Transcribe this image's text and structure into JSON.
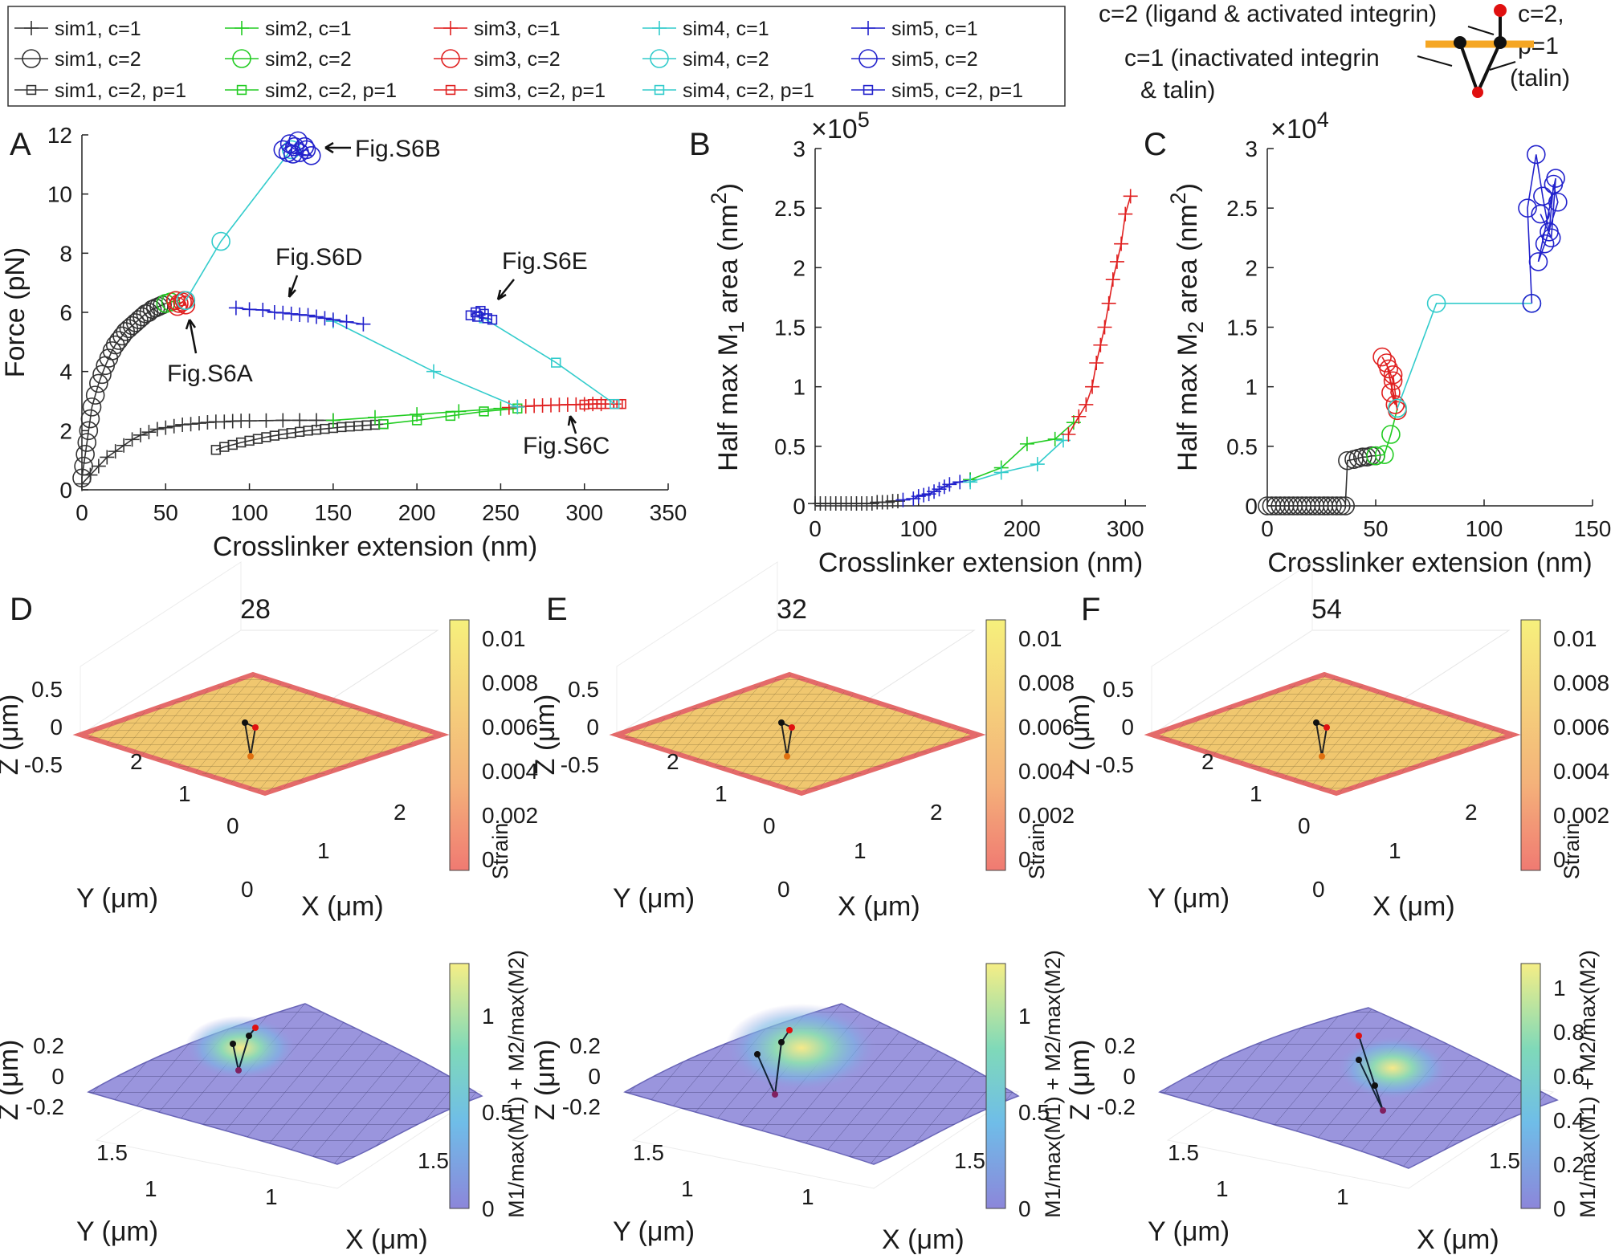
{
  "legend": {
    "entries": [
      {
        "label": "sim1, c=1",
        "color": "#333333",
        "marker": "plus"
      },
      {
        "label": "sim2, c=1",
        "color": "#22cc22",
        "marker": "plus"
      },
      {
        "label": "sim3, c=1",
        "color": "#e02020",
        "marker": "plus"
      },
      {
        "label": "sim4, c=1",
        "color": "#33cccc",
        "marker": "plus"
      },
      {
        "label": "sim5, c=1",
        "color": "#2222cc",
        "marker": "plus"
      },
      {
        "label": "sim1, c=2",
        "color": "#333333",
        "marker": "circle"
      },
      {
        "label": "sim2, c=2",
        "color": "#22cc22",
        "marker": "circle"
      },
      {
        "label": "sim3, c=2",
        "color": "#e02020",
        "marker": "circle"
      },
      {
        "label": "sim4, c=2",
        "color": "#33cccc",
        "marker": "circle"
      },
      {
        "label": "sim5, c=2",
        "color": "#2222cc",
        "marker": "circle"
      },
      {
        "label": "sim1, c=2, p=1",
        "color": "#333333",
        "marker": "square"
      },
      {
        "label": "sim2, c=2, p=1",
        "color": "#22cc22",
        "marker": "square"
      },
      {
        "label": "sim3, c=2, p=1",
        "color": "#e02020",
        "marker": "square"
      },
      {
        "label": "sim4, c=2, p=1",
        "color": "#33cccc",
        "marker": "square"
      },
      {
        "label": "sim5, c=2, p=1",
        "color": "#2222cc",
        "marker": "square"
      }
    ]
  },
  "schematic": {
    "top_label": "c=2 (ligand & activated integrin)",
    "right_label_1": "c=2,",
    "right_label_2": "p=1",
    "right_label_3": "(talin)",
    "left_label_1": "c=1 (inactivated integrin",
    "left_label_2": "& talin)",
    "bar_color": "#f5a623",
    "node_red": "#e01010",
    "node_black": "#111111"
  },
  "panels": {
    "A": {
      "letter": "A"
    },
    "B": {
      "letter": "B",
      "exponent": "×10",
      "exponent_power": "5"
    },
    "C": {
      "letter": "C",
      "exponent": "×10",
      "exponent_power": "4"
    },
    "D": {
      "letter": "D",
      "title": "28"
    },
    "E": {
      "letter": "E",
      "title": "32"
    },
    "F": {
      "letter": "F",
      "title": "54"
    }
  },
  "annotations": {
    "figS6A": "Fig.S6A",
    "figS6B": "Fig.S6B",
    "figS6C": "Fig.S6C",
    "figS6D": "Fig.S6D",
    "figS6E": "Fig.S6E"
  },
  "surfaces": {
    "z_label": "Z (μm)",
    "y_label": "Y (μm)",
    "x_label": "X (μm)",
    "strain_label": "Strain",
    "m_label": "M1/max(M1) + M2/max(M2)",
    "top_z_ticks": [
      "0.5",
      "0",
      "-0.5"
    ],
    "top_y_ticks": [
      "2",
      "1",
      "0"
    ],
    "top_x_ticks": [
      "0",
      "1",
      "2"
    ],
    "bot_z_ticks": [
      "0.2",
      "0",
      "-0.2"
    ],
    "bot_y_ticks": [
      "1.5",
      "1"
    ],
    "bot_x_ticks": [
      "1",
      "1.5"
    ],
    "strain_ticks": [
      "0.01",
      "0.008",
      "0.006",
      "0.004",
      "0.002",
      "0"
    ],
    "m_ticks_D": [
      "1",
      "0.5",
      "0"
    ],
    "m_ticks_E": [
      "1",
      "0.5",
      "0"
    ],
    "m_ticks_F": [
      "1",
      "0.8",
      "0.6",
      "0.4",
      "0.2",
      "0"
    ],
    "surface_yellow": "#f2d478",
    "surface_purple": "#9a95dd"
  },
  "chart_data": [
    {
      "id": "A",
      "type": "line",
      "xlabel": "Crosslinker extension (nm)",
      "ylabel": "Force (pN)",
      "xlim": [
        0,
        350
      ],
      "ylim": [
        0,
        12
      ],
      "xticks": [
        0,
        50,
        100,
        150,
        200,
        250,
        300,
        350
      ],
      "yticks": [
        0,
        2,
        4,
        6,
        8,
        10,
        12
      ],
      "series": [
        {
          "name": "sim1, c=1",
          "color": "#333333",
          "marker": "plus",
          "x": [
            0,
            5,
            10,
            15,
            20,
            25,
            30,
            35,
            40,
            45,
            50,
            55,
            60,
            65,
            70,
            75,
            80,
            85,
            90,
            95,
            100,
            110,
            120,
            130,
            140,
            150
          ],
          "y": [
            0.2,
            0.5,
            0.8,
            1.1,
            1.3,
            1.5,
            1.7,
            1.85,
            1.95,
            2.05,
            2.1,
            2.15,
            2.2,
            2.22,
            2.25,
            2.28,
            2.3,
            2.3,
            2.32,
            2.33,
            2.33,
            2.34,
            2.35,
            2.35,
            2.35,
            2.35
          ]
        },
        {
          "name": "sim1, c=2",
          "color": "#333333",
          "marker": "circle",
          "x": [
            0,
            1,
            2,
            3,
            4,
            5,
            6,
            8,
            10,
            12,
            14,
            16,
            18,
            20,
            22,
            24,
            26,
            28,
            30,
            32,
            34,
            36,
            38,
            40,
            42,
            44,
            46,
            48,
            50
          ],
          "y": [
            0.4,
            0.8,
            1.2,
            1.6,
            2.0,
            2.4,
            2.8,
            3.2,
            3.6,
            3.9,
            4.2,
            4.45,
            4.7,
            4.9,
            5.05,
            5.2,
            5.35,
            5.45,
            5.55,
            5.65,
            5.75,
            5.85,
            5.95,
            6.0,
            6.1,
            6.15,
            6.2,
            6.25,
            6.3
          ]
        },
        {
          "name": "sim1, c=2, p=1",
          "color": "#333333",
          "marker": "square",
          "x": [
            80,
            85,
            90,
            95,
            100,
            105,
            110,
            115,
            120,
            125,
            130,
            135,
            140,
            145,
            150,
            155,
            160,
            165,
            170,
            175,
            180
          ],
          "y": [
            1.35,
            1.45,
            1.52,
            1.6,
            1.66,
            1.72,
            1.78,
            1.83,
            1.88,
            1.92,
            1.96,
            2.0,
            2.03,
            2.06,
            2.09,
            2.12,
            2.14,
            2.16,
            2.18,
            2.2,
            2.22
          ]
        },
        {
          "name": "sim2, c=1",
          "color": "#22cc22",
          "marker": "plus",
          "x": [
            150,
            175,
            200,
            225,
            250
          ],
          "y": [
            2.35,
            2.45,
            2.55,
            2.65,
            2.75
          ]
        },
        {
          "name": "sim2, c=2",
          "color": "#22cc22",
          "marker": "circle",
          "x": [
            50,
            53,
            56
          ],
          "y": [
            6.3,
            6.35,
            6.4
          ]
        },
        {
          "name": "sim2, c=2, p=1",
          "color": "#22cc22",
          "marker": "square",
          "x": [
            180,
            200,
            220,
            240,
            260
          ],
          "y": [
            2.22,
            2.35,
            2.5,
            2.65,
            2.75
          ]
        },
        {
          "name": "sim3, c=1",
          "color": "#e02020",
          "marker": "plus",
          "x": [
            255,
            260,
            265,
            270,
            275,
            280,
            285,
            290,
            295,
            300,
            305,
            310
          ],
          "y": [
            2.78,
            2.8,
            2.82,
            2.84,
            2.85,
            2.86,
            2.87,
            2.88,
            2.88,
            2.89,
            2.9,
            2.9
          ]
        },
        {
          "name": "sim3, c=2",
          "color": "#e02020",
          "marker": "circle",
          "x": [
            56,
            58,
            60,
            62,
            57,
            61
          ],
          "y": [
            6.4,
            6.3,
            6.35,
            6.25,
            6.2,
            6.4
          ]
        },
        {
          "name": "sim3, c=2, p=1",
          "color": "#e02020",
          "marker": "square",
          "x": [
            300,
            305,
            310,
            315,
            320,
            322
          ],
          "y": [
            2.88,
            2.9,
            2.9,
            2.9,
            2.9,
            2.9
          ]
        },
        {
          "name": "sim4, c=1",
          "color": "#33cccc",
          "marker": "plus",
          "x": [
            150,
            210,
            260
          ],
          "y": [
            5.7,
            4.0,
            2.8
          ]
        },
        {
          "name": "sim4, c=2",
          "color": "#33cccc",
          "marker": "circle",
          "x": [
            62,
            83,
            125
          ],
          "y": [
            6.4,
            8.4,
            11.5
          ]
        },
        {
          "name": "sim4, c=2, p=1",
          "color": "#33cccc",
          "marker": "square",
          "x": [
            240,
            283,
            318
          ],
          "y": [
            5.8,
            4.3,
            2.9
          ]
        },
        {
          "name": "sim5, c=1",
          "color": "#2222cc",
          "marker": "plus",
          "x": [
            92,
            100,
            108,
            115,
            120,
            125,
            130,
            135,
            140,
            145,
            150,
            158,
            168
          ],
          "y": [
            6.15,
            6.1,
            6.08,
            6.0,
            5.98,
            5.95,
            5.92,
            5.9,
            5.85,
            5.8,
            5.75,
            5.68,
            5.6
          ]
        },
        {
          "name": "sim5, c=2",
          "color": "#2222cc",
          "marker": "circle",
          "x": [
            120,
            124,
            127,
            130,
            134,
            137,
            123,
            129,
            133,
            126
          ],
          "y": [
            11.5,
            11.7,
            11.6,
            11.4,
            11.5,
            11.3,
            11.4,
            11.8,
            11.6,
            11.35
          ]
        },
        {
          "name": "sim5, c=2, p=1",
          "color": "#2222cc",
          "marker": "square",
          "x": [
            232,
            235,
            238,
            240,
            236,
            242,
            245
          ],
          "y": [
            5.9,
            6.0,
            6.05,
            5.95,
            5.85,
            5.8,
            5.75
          ]
        }
      ]
    },
    {
      "id": "B",
      "type": "line",
      "xlabel": "Crosslinker extension (nm)",
      "ylabel": "Half max M1 area (nm2)",
      "scale": "×10^5",
      "xlim": [
        0,
        320
      ],
      "ylim": [
        0,
        3
      ],
      "xticks": [
        0,
        100,
        200,
        300
      ],
      "yticks": [
        0,
        0.5,
        1,
        1.5,
        2,
        2.5,
        3
      ],
      "series": [
        {
          "name": "sim1",
          "color": "#333333",
          "marker": "plus",
          "x": [
            0,
            5,
            10,
            15,
            20,
            25,
            30,
            35,
            40,
            45,
            50,
            55,
            60,
            65,
            70,
            75,
            80
          ],
          "y": [
            0.02,
            0.02,
            0.02,
            0.02,
            0.02,
            0.02,
            0.02,
            0.02,
            0.02,
            0.02,
            0.02,
            0.02,
            0.03,
            0.03,
            0.03,
            0.04,
            0.04
          ]
        },
        {
          "name": "sim5",
          "color": "#2222cc",
          "marker": "plus",
          "x": [
            85,
            95,
            100,
            105,
            110,
            115,
            120,
            125,
            130,
            140,
            150
          ],
          "y": [
            0.05,
            0.06,
            0.08,
            0.09,
            0.1,
            0.12,
            0.14,
            0.16,
            0.18,
            0.2,
            0.22
          ]
        },
        {
          "name": "sim2",
          "color": "#22cc22",
          "marker": "plus",
          "x": [
            150,
            180,
            205,
            232,
            250
          ],
          "y": [
            0.22,
            0.32,
            0.52,
            0.56,
            0.7
          ]
        },
        {
          "name": "sim4",
          "color": "#33cccc",
          "marker": "plus",
          "x": [
            150,
            180,
            215,
            240
          ],
          "y": [
            0.2,
            0.28,
            0.35,
            0.55
          ]
        },
        {
          "name": "sim3",
          "color": "#e02020",
          "marker": "plus",
          "x": [
            245,
            255,
            262,
            268,
            272,
            276,
            280,
            284,
            288,
            292,
            296,
            300,
            305
          ],
          "y": [
            0.6,
            0.75,
            0.85,
            1.0,
            1.2,
            1.35,
            1.5,
            1.7,
            1.9,
            2.05,
            2.2,
            2.45,
            2.6
          ]
        }
      ]
    },
    {
      "id": "C",
      "type": "line",
      "xlabel": "Crosslinker extension (nm)",
      "ylabel": "Half max M2 area (nm2)",
      "scale": "×10^4",
      "xlim": [
        0,
        150
      ],
      "ylim": [
        0,
        3
      ],
      "xticks": [
        0,
        50,
        100,
        150
      ],
      "yticks": [
        0,
        0.5,
        1,
        1.5,
        2,
        2.5,
        3
      ],
      "series": [
        {
          "name": "sim1",
          "color": "#333333",
          "marker": "circle",
          "x": [
            0,
            2,
            4,
            6,
            8,
            10,
            12,
            14,
            16,
            18,
            20,
            22,
            24,
            26,
            28,
            30,
            32,
            34,
            36,
            37,
            40,
            42,
            44,
            46,
            48,
            50
          ],
          "y": [
            0,
            0,
            0,
            0,
            0,
            0,
            0,
            0,
            0,
            0,
            0,
            0,
            0,
            0,
            0,
            0,
            0,
            0,
            0,
            0.38,
            0.39,
            0.4,
            0.41,
            0.41,
            0.42,
            0.42
          ]
        },
        {
          "name": "sim2",
          "color": "#22cc22",
          "marker": "circle",
          "x": [
            50,
            54,
            57,
            60
          ],
          "y": [
            0.42,
            0.43,
            0.6,
            0.82
          ]
        },
        {
          "name": "sim3",
          "color": "#e02020",
          "marker": "circle",
          "x": [
            53,
            56,
            58,
            57,
            59,
            55,
            60,
            58
          ],
          "y": [
            1.25,
            1.15,
            1.05,
            0.95,
            0.85,
            1.2,
            0.8,
            1.1
          ]
        },
        {
          "name": "sim4",
          "color": "#33cccc",
          "marker": "circle",
          "x": [
            60,
            78,
            122
          ],
          "y": [
            0.82,
            1.7,
            1.7
          ]
        },
        {
          "name": "sim5",
          "color": "#2222cc",
          "marker": "circle",
          "x": [
            122,
            120,
            124,
            127,
            130,
            132,
            134,
            128,
            125,
            133,
            131,
            126
          ],
          "y": [
            1.7,
            2.5,
            2.95,
            2.6,
            2.3,
            2.7,
            2.55,
            2.2,
            2.05,
            2.75,
            2.25,
            2.45
          ]
        }
      ]
    }
  ]
}
